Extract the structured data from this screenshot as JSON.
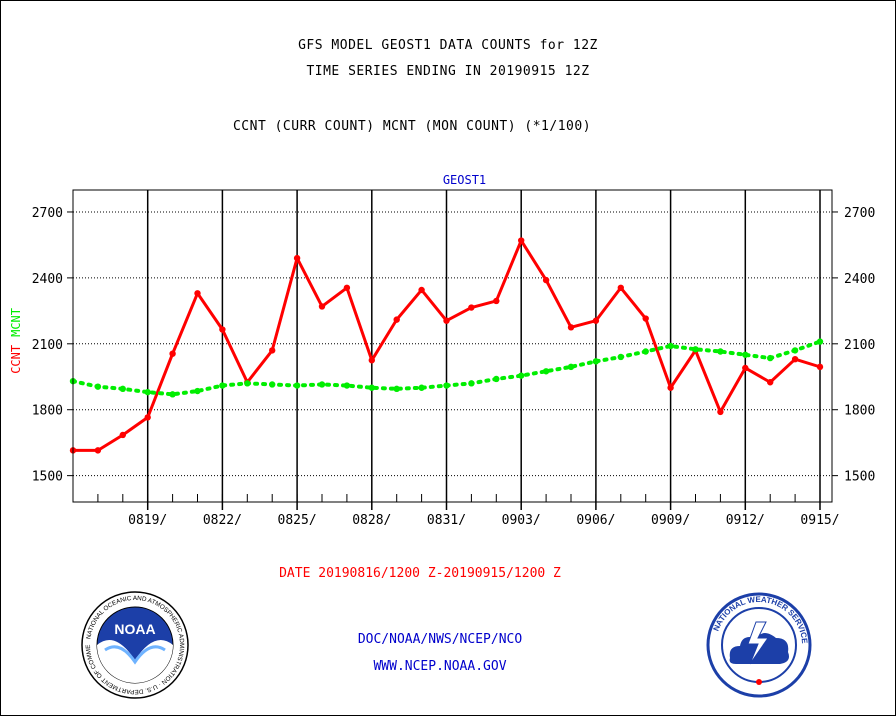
{
  "header": {
    "line1": "GFS MODEL GEOST1 DATA COUNTS for 12Z",
    "line2": "TIME SERIES ENDING IN 20190915 12Z",
    "line3": "CCNT (CURR COUNT) MCNT (MON COUNT) (*1/100)"
  },
  "chart_data": {
    "type": "line",
    "title": "GEOST1",
    "ylabel_parts": [
      "CCNT",
      "MCNT"
    ],
    "xlabel": "DATE 20190816/1200 Z-20190915/1200 Z",
    "ylim": [
      1380,
      2800
    ],
    "yticks": [
      1500,
      1800,
      2100,
      2400,
      2700
    ],
    "x_day_range": [
      0,
      30
    ],
    "x_ticks": [
      {
        "day": 3,
        "label": "0819/"
      },
      {
        "day": 6,
        "label": "0822/"
      },
      {
        "day": 9,
        "label": "0825/"
      },
      {
        "day": 12,
        "label": "0828/"
      },
      {
        "day": 15,
        "label": "0831/"
      },
      {
        "day": 18,
        "label": "0903/"
      },
      {
        "day": 21,
        "label": "0906/"
      },
      {
        "day": 24,
        "label": "0909/"
      },
      {
        "day": 27,
        "label": "0912/"
      },
      {
        "day": 30,
        "label": "0915/"
      }
    ],
    "grid": true,
    "series": [
      {
        "name": "CCNT",
        "color": "#ff0000",
        "style": "solid",
        "x": [
          0,
          1,
          2,
          3,
          4,
          5,
          6,
          7,
          8,
          9,
          10,
          11,
          12,
          13,
          14,
          15,
          16,
          17,
          18,
          19,
          20,
          21,
          22,
          23,
          24,
          25,
          26,
          27,
          28,
          29,
          30
        ],
        "values": [
          1615,
          1615,
          1685,
          1765,
          2055,
          2330,
          2165,
          1925,
          2070,
          2490,
          2270,
          2355,
          2025,
          2210,
          2345,
          2205,
          2265,
          2295,
          2570,
          2390,
          2175,
          2205,
          2355,
          2215,
          1900,
          2070,
          1790,
          1990,
          1925,
          2030,
          1995
        ]
      },
      {
        "name": "MCNT",
        "color": "#00ee00",
        "style": "dotted",
        "x": [
          0,
          1,
          2,
          3,
          4,
          5,
          6,
          7,
          8,
          9,
          10,
          11,
          12,
          13,
          14,
          15,
          16,
          17,
          18,
          19,
          20,
          21,
          22,
          23,
          24,
          25,
          26,
          27,
          28,
          29,
          30
        ],
        "values": [
          1930,
          1905,
          1895,
          1880,
          1870,
          1885,
          1910,
          1920,
          1915,
          1910,
          1915,
          1910,
          1900,
          1895,
          1900,
          1910,
          1920,
          1940,
          1955,
          1975,
          1995,
          2020,
          2040,
          2065,
          2090,
          2075,
          2065,
          2050,
          2035,
          2070,
          2110
        ]
      }
    ]
  },
  "footer": {
    "org": "DOC/NOAA/NWS/NCEP/NCO",
    "url": "WWW.NCEP.NOAA.GOV"
  },
  "logos": {
    "noaa_text": "NOAA",
    "noaa_ring_text": "NATIONAL OCEANIC AND ATMOSPHERIC ADMINISTRATION · U.S. DEPARTMENT OF COMMERCE ·",
    "nws_ring_text": "NATIONAL WEATHER SERVICE"
  },
  "colors": {
    "ccnt": "#ff0000",
    "mcnt": "#00ee00",
    "title_blue": "#0000cc",
    "axis": "#000000"
  }
}
